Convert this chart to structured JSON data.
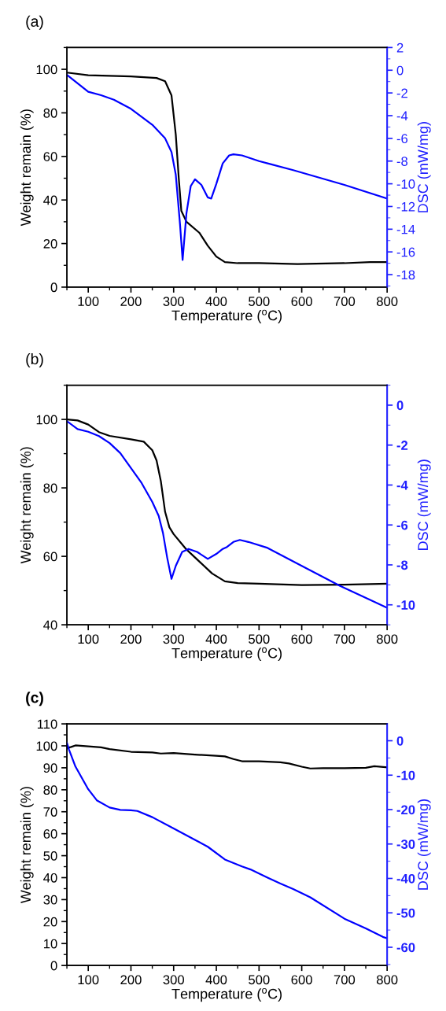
{
  "chart_data": [
    {
      "type": "line",
      "title": "(a)",
      "xlabel": "Temperature ($^{o}$C)",
      "ylabel": "Weight remain (%)",
      "y2label": "DSC (mW/mg)",
      "xlim": [
        50,
        800
      ],
      "xticks": [
        100,
        200,
        300,
        400,
        500,
        600,
        700,
        800
      ],
      "ylim": [
        0,
        110
      ],
      "yticks": [
        0,
        20,
        40,
        60,
        80,
        100
      ],
      "y2lim": [
        -19.1,
        2
      ],
      "y2ticks": [
        {
          "value": 2,
          "label": "2"
        },
        {
          "value": 0,
          "label": "0"
        },
        {
          "value": -2,
          "label": "-2"
        },
        {
          "value": -4,
          "label": "-4"
        },
        {
          "value": -6,
          "label": "-6"
        },
        {
          "value": -8,
          "label": "-8"
        },
        {
          "value": -10,
          "label": "-10"
        },
        {
          "value": -12,
          "label": "-12"
        },
        {
          "value": -14,
          "label": "-14"
        },
        {
          "value": -16,
          "label": "-16"
        },
        {
          "value": -18,
          "label": "-18"
        }
      ],
      "grid": false,
      "series": [
        {
          "color": "#000000",
          "x": [
            50,
            100,
            200,
            260,
            280,
            295,
            305,
            312,
            318,
            330,
            360,
            380,
            400,
            420,
            450,
            500,
            590,
            700,
            760,
            800
          ],
          "values": [
            98.5,
            97.3,
            96.7,
            96,
            94.5,
            88,
            70,
            50,
            35,
            30,
            25,
            19,
            14,
            11.5,
            11,
            11,
            10.6,
            11,
            11.5,
            11.5
          ]
        },
        {
          "color": "#0000ff",
          "axis": "y2",
          "x": [
            50,
            100,
            130,
            160,
            200,
            250,
            280,
            295,
            305,
            315,
            321,
            330,
            340,
            350,
            365,
            380,
            388,
            400,
            415,
            430,
            440,
            460,
            500,
            520,
            580,
            700,
            800
          ],
          "values": [
            -0.4,
            -1.9,
            -2.2,
            -2.6,
            -3.4,
            -4.8,
            -6.0,
            -7.2,
            -9.2,
            -13.6,
            -16.7,
            -12.6,
            -10.2,
            -9.6,
            -10.1,
            -11.2,
            -11.3,
            -10.0,
            -8.2,
            -7.5,
            -7.4,
            -7.5,
            -8.0,
            -8.2,
            -8.8,
            -10.1,
            -11.3
          ]
        }
      ]
    },
    {
      "type": "line",
      "title": "(b)",
      "xlabel": "Temperature ($^{o}$C)",
      "ylabel": "Weight remain (%)",
      "y2label": "DSC (mW/mg)",
      "xlim": [
        50,
        800
      ],
      "xticks": [
        100,
        200,
        300,
        400,
        500,
        600,
        700,
        800
      ],
      "ylim": [
        40,
        110
      ],
      "yticks": [
        40,
        60,
        80,
        100
      ],
      "y2lim": [
        -11,
        1
      ],
      "y2ticks": [
        {
          "value": 0,
          "label": "0"
        },
        {
          "value": -2,
          "label": "-2"
        },
        {
          "value": -4,
          "label": "-4"
        },
        {
          "value": -6,
          "label": "-6"
        },
        {
          "value": -8,
          "label": "-8"
        },
        {
          "value": -10,
          "label": "-10"
        }
      ],
      "grid": false,
      "series": [
        {
          "color": "#000000",
          "x": [
            50,
            75,
            100,
            125,
            150,
            200,
            230,
            250,
            260,
            270,
            280,
            290,
            300,
            330,
            360,
            390,
            420,
            450,
            500,
            600,
            700,
            800
          ],
          "values": [
            100,
            99.7,
            98.5,
            96.3,
            95.2,
            94.2,
            93.5,
            91,
            88,
            82,
            73,
            68.5,
            66.5,
            62,
            58.5,
            55,
            52.7,
            52.2,
            52,
            51.6,
            51.7,
            52
          ]
        },
        {
          "color": "#0000ff",
          "axis": "y2",
          "x": [
            50,
            75,
            100,
            125,
            150,
            175,
            200,
            225,
            250,
            265,
            275,
            285,
            295,
            305,
            320,
            335,
            355,
            380,
            400,
            415,
            425,
            440,
            455,
            475,
            520,
            600,
            690,
            800
          ],
          "values": [
            -0.8,
            -1.2,
            -1.33,
            -1.55,
            -1.9,
            -2.4,
            -3.15,
            -3.9,
            -4.85,
            -5.55,
            -6.4,
            -7.65,
            -8.7,
            -8.05,
            -7.35,
            -7.2,
            -7.35,
            -7.7,
            -7.45,
            -7.2,
            -7.1,
            -6.85,
            -6.75,
            -6.85,
            -7.15,
            -8.05,
            -9.05,
            -10.15
          ]
        }
      ]
    },
    {
      "type": "line",
      "title": "(c)",
      "xlabel": "Temperature ($^{o}$C)",
      "ylabel": "Weight remain (%)",
      "y2label": "DSC (mW/mg)",
      "xlim": [
        50,
        800
      ],
      "xticks": [
        100,
        200,
        300,
        400,
        500,
        600,
        700,
        800
      ],
      "ylim": [
        0,
        110
      ],
      "yticks": [
        0,
        10,
        20,
        30,
        40,
        50,
        60,
        70,
        80,
        90,
        100,
        110
      ],
      "y2lim": [
        -65.3,
        4.9
      ],
      "y2ticks": [
        {
          "value": 0,
          "label": "0"
        },
        {
          "value": -10,
          "label": "-10"
        },
        {
          "value": -20,
          "label": "-20"
        },
        {
          "value": -30,
          "label": "-30"
        },
        {
          "value": -40,
          "label": "-40"
        },
        {
          "value": -50,
          "label": "-50"
        },
        {
          "value": -60,
          "label": "-60"
        }
      ],
      "grid": false,
      "series": [
        {
          "color": "#000000",
          "x": [
            50,
            60,
            70,
            100,
            130,
            150,
            200,
            250,
            270,
            300,
            350,
            400,
            420,
            440,
            460,
            500,
            550,
            570,
            600,
            620,
            650,
            700,
            750,
            770,
            800
          ],
          "values": [
            99,
            99.5,
            100.2,
            99.8,
            99.3,
            98.5,
            97.3,
            97,
            96.5,
            96.7,
            96,
            95.5,
            95.2,
            94,
            93,
            93,
            92.5,
            92,
            90.5,
            89.7,
            89.8,
            89.8,
            90,
            90.7,
            90.2
          ]
        },
        {
          "color": "#0000ff",
          "axis": "y2",
          "x": [
            50,
            55,
            70,
            85,
            100,
            120,
            150,
            175,
            200,
            215,
            250,
            300,
            350,
            380,
            420,
            460,
            480,
            520,
            550,
            580,
            620,
            700,
            750,
            790,
            800
          ],
          "values": [
            -0.6,
            -2.6,
            -7.5,
            -10.8,
            -14.1,
            -17.3,
            -19.4,
            -20.1,
            -20.2,
            -20.4,
            -22.2,
            -25.5,
            -28.8,
            -30.8,
            -34.5,
            -36.5,
            -37.4,
            -39.8,
            -41.5,
            -43.1,
            -45.5,
            -51.7,
            -54.5,
            -57,
            -57.4
          ]
        }
      ]
    }
  ]
}
